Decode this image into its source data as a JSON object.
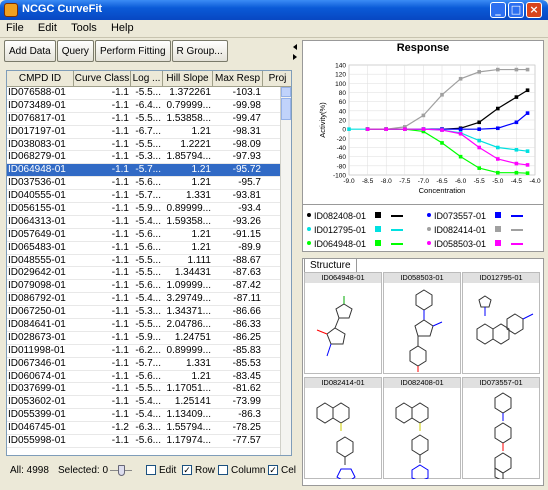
{
  "window": {
    "title": "NCGC CurveFit"
  },
  "menu": [
    "File",
    "Edit",
    "Tools",
    "Help"
  ],
  "toolbar": {
    "add_data": "Add Data",
    "query": "Query",
    "perform_fitting": "Perform Fitting",
    "r_group": "R Group..."
  },
  "table": {
    "columns": [
      "CMPD ID",
      "Curve Class",
      "Log ...",
      "Hill Slope",
      "Max Resp",
      "Proj"
    ],
    "selected_index": 8,
    "rows": [
      [
        "ID076588-01",
        "-1.1",
        "-5.5...",
        "1.372261",
        "-103.1"
      ],
      [
        "ID073489-01",
        "-1.1",
        "-6.4...",
        "0.79999...",
        "-99.98"
      ],
      [
        "ID076817-01",
        "-1.1",
        "-5.5...",
        "1.53858...",
        "-99.47"
      ],
      [
        "ID017197-01",
        "-1.1",
        "-6.7...",
        "1.21",
        "-98.31"
      ],
      [
        "ID038083-01",
        "-1.1",
        "-5.5...",
        "1.2221",
        "-98.09"
      ],
      [
        "ID068279-01",
        "-1.1",
        "-5.3...",
        "1.85794...",
        "-97.93"
      ],
      [
        "ID064948-01",
        "-1.1",
        "-5.7...",
        "1.21",
        "-95.72"
      ],
      [
        "ID037536-01",
        "-1.1",
        "-5.6...",
        "1.21",
        "-95.7"
      ],
      [
        "ID040555-01",
        "-1.1",
        "-5.7...",
        "1.331",
        "-93.81"
      ],
      [
        "ID056155-01",
        "-1.1",
        "-5.9...",
        "0.89999...",
        "-93.4"
      ],
      [
        "ID064313-01",
        "-1.1",
        "-5.4...",
        "1.59358...",
        "-93.26"
      ],
      [
        "ID057649-01",
        "-1.1",
        "-5.6...",
        "1.21",
        "-91.15"
      ],
      [
        "ID065483-01",
        "-1.1",
        "-5.6...",
        "1.21",
        "-89.9"
      ],
      [
        "ID048555-01",
        "-1.1",
        "-5.5...",
        "1.111",
        "-88.67"
      ],
      [
        "ID029642-01",
        "-1.1",
        "-5.5...",
        "1.34431",
        "-87.63"
      ],
      [
        "ID079098-01",
        "-1.1",
        "-5.6...",
        "1.09999...",
        "-87.42"
      ],
      [
        "ID086792-01",
        "-1.1",
        "-5.4...",
        "3.29749...",
        "-87.11"
      ],
      [
        "ID067250-01",
        "-1.1",
        "-5.3...",
        "1.34371...",
        "-86.66"
      ],
      [
        "ID084641-01",
        "-1.1",
        "-5.5...",
        "2.04786...",
        "-86.33"
      ],
      [
        "ID028673-01",
        "-1.1",
        "-5.9...",
        "1.24751",
        "-86.25"
      ],
      [
        "ID011998-01",
        "-1.1",
        "-6.2...",
        "0.89999...",
        "-85.83"
      ],
      [
        "ID067346-01",
        "-1.1",
        "-5.7...",
        "1.331",
        "-85.53"
      ],
      [
        "ID060674-01",
        "-1.1",
        "-5.6...",
        "1.21",
        "-83.45"
      ],
      [
        "ID037699-01",
        "-1.1",
        "-5.5...",
        "1.17051...",
        "-81.62"
      ],
      [
        "ID053602-01",
        "-1.1",
        "-5.4...",
        "1.25141",
        "-73.99"
      ],
      [
        "ID055399-01",
        "-1.1",
        "-5.4...",
        "1.13409...",
        "-86.3"
      ],
      [
        "ID046745-01",
        "-1.2",
        "-6.3...",
        "1.55794...",
        "-78.25"
      ],
      [
        "ID055998-01",
        "-1.1",
        "-5.6...",
        "1.17974...",
        "-77.57"
      ]
    ]
  },
  "status": {
    "all": "All: 4998",
    "selected": "Selected: 0",
    "edit": "Edit",
    "row": "Row",
    "column": "Column",
    "cell": "Cel"
  },
  "chart_data": {
    "type": "line",
    "title": "Response",
    "xlabel": "Concentration",
    "ylabel": "Activity(%)",
    "xlim": [
      -9.0,
      -4.0
    ],
    "ylim": [
      -100,
      140
    ],
    "xticks": [
      "-9.0",
      "-8.5",
      "-8.0",
      "-7.5",
      "-7.0",
      "-6.5",
      "-6.0",
      "-5.5",
      "-5.0",
      "-4.5",
      "-4.0"
    ],
    "yticks": [
      "140",
      "120",
      "100",
      "80",
      "60",
      "40",
      "20",
      "0",
      "-20",
      "-40",
      "-60",
      "-80",
      "-100"
    ],
    "series": [
      {
        "name": "ID082408-01",
        "color": "#000000",
        "x": [
          -8.5,
          -8.0,
          -7.5,
          -7.0,
          -6.5,
          -6.0,
          -5.5,
          -5.0,
          -4.5,
          -4.2
        ],
        "y": [
          0,
          0,
          0,
          0,
          0,
          2,
          15,
          45,
          70,
          85
        ]
      },
      {
        "name": "ID073557-01",
        "color": "#0000ff",
        "x": [
          -8.5,
          -8.0,
          -7.5,
          -7.0,
          -6.5,
          -6.0,
          -5.5,
          -5.0,
          -4.5,
          -4.2
        ],
        "y": [
          0,
          0,
          0,
          0,
          0,
          0,
          0,
          2,
          15,
          35
        ]
      },
      {
        "name": "ID012795-01",
        "color": "#00e0e0",
        "x": [
          -9.0,
          -8.5,
          -8.0,
          -7.5,
          -7.0,
          -6.5,
          -6.0,
          -5.5,
          -5.0,
          -4.5,
          -4.2
        ],
        "y": [
          0,
          0,
          0,
          0,
          0,
          -2,
          -8,
          -25,
          -40,
          -45,
          -48
        ]
      },
      {
        "name": "ID082414-01",
        "color": "#a0a0a0",
        "x": [
          -8.5,
          -8.0,
          -7.5,
          -7.0,
          -6.5,
          -6.0,
          -5.5,
          -5.0,
          -4.5,
          -4.2
        ],
        "y": [
          0,
          0,
          5,
          30,
          75,
          110,
          125,
          130,
          130,
          130
        ]
      },
      {
        "name": "ID064948-01",
        "color": "#00ff00",
        "x": [
          -8.5,
          -8.0,
          -7.5,
          -7.0,
          -6.5,
          -6.0,
          -5.5,
          -5.0,
          -4.5,
          -4.2
        ],
        "y": [
          0,
          0,
          0,
          -5,
          -30,
          -60,
          -85,
          -95,
          -95,
          -96
        ]
      },
      {
        "name": "ID058503-01",
        "color": "#ff00ff",
        "x": [
          -8.5,
          -8.0,
          -7.5,
          -7.0,
          -6.5,
          -6.0,
          -5.5,
          -5.0,
          -4.5,
          -4.2
        ],
        "y": [
          0,
          0,
          0,
          0,
          -2,
          -10,
          -40,
          -65,
          -75,
          -78
        ]
      }
    ]
  },
  "structure": {
    "tab_label": "Structure",
    "cells": [
      "ID064948-01",
      "ID058503-01",
      "ID012795-01",
      "ID082414-01",
      "ID082408-01",
      "ID073557-01"
    ]
  },
  "icons": {
    "window-icon": "app",
    "minimize": "_",
    "maximize": "□",
    "close": "×"
  }
}
